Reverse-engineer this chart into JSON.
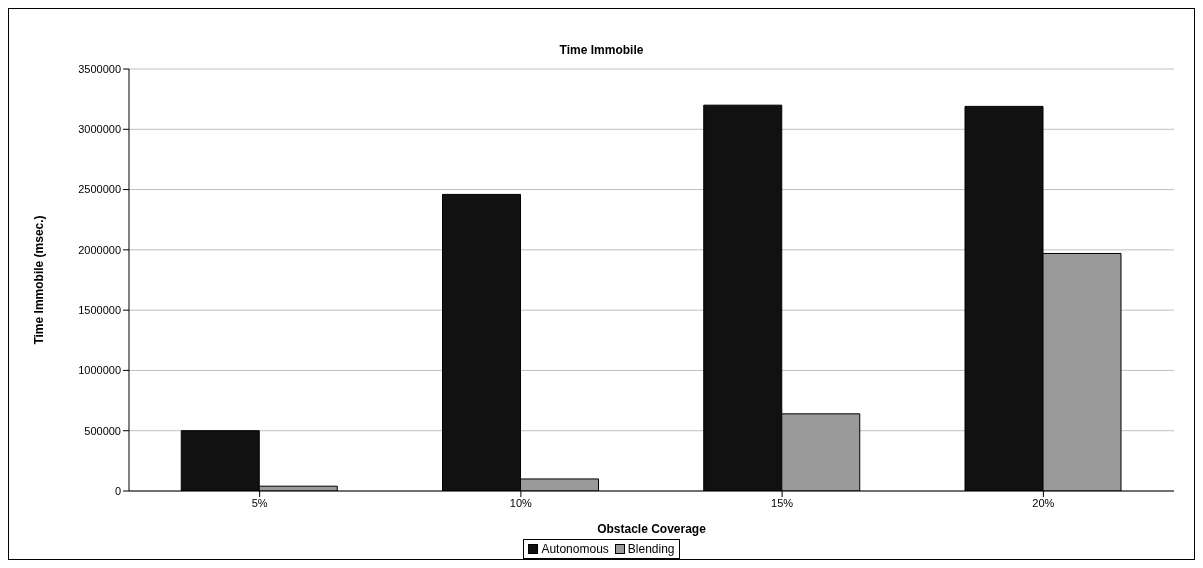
{
  "chart_data": {
    "type": "bar",
    "title": "Time Immobile",
    "xlabel": "Obstacle Coverage",
    "ylabel": "Time Immobile (msec.)",
    "categories": [
      "5%",
      "10%",
      "15%",
      "20%"
    ],
    "series": [
      {
        "name": "Autonomous",
        "color": "#111111",
        "values": [
          500000,
          2460000,
          3200000,
          3190000
        ]
      },
      {
        "name": "Blending",
        "color": "#9a9a9a",
        "values": [
          40000,
          100000,
          640000,
          1970000
        ]
      }
    ],
    "ylim": [
      0,
      3500000
    ],
    "yticks": [
      0,
      500000,
      1000000,
      1500000,
      2000000,
      2500000,
      3000000,
      3500000
    ],
    "grid": "y",
    "legend": "bottom"
  }
}
